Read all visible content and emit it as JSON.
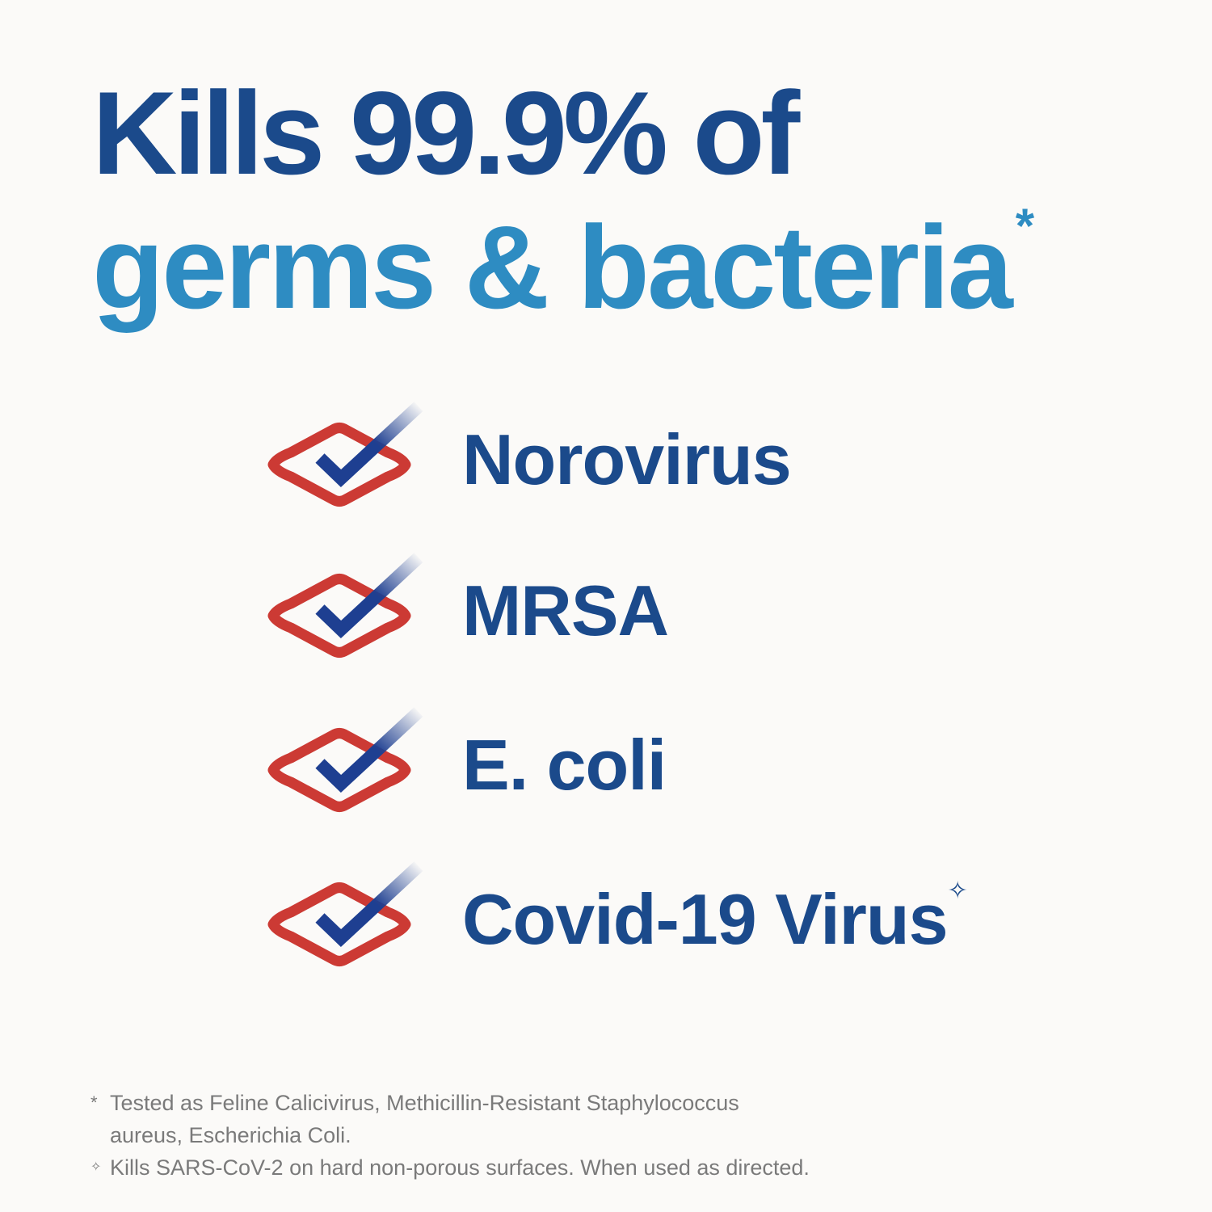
{
  "headline": {
    "line1": "Kills 99.9% of",
    "line2": "germs & bacteria",
    "asterisk": "*"
  },
  "colors": {
    "dark_blue": "#1b4a8b",
    "light_blue": "#2e8cc2",
    "check_red": "#cc3a34",
    "footnote_gray": "#7a7a7a"
  },
  "items": [
    {
      "label": "Norovirus",
      "icon": "check-badge-icon",
      "mark": ""
    },
    {
      "label": "MRSA",
      "icon": "check-badge-icon",
      "mark": ""
    },
    {
      "label": "E. coli",
      "icon": "check-badge-icon",
      "mark": ""
    },
    {
      "label": "Covid-19 Virus",
      "icon": "check-badge-icon",
      "mark": "✧"
    }
  ],
  "footnotes": [
    {
      "mark": "*",
      "text": "Tested as Feline Calicivirus, Methicillin-Resistant Staphylococcus",
      "cont": "aureus, Escherichia Coli."
    },
    {
      "mark": "✧",
      "text": "Kills SARS-CoV-2 on hard non-porous surfaces. When used as directed."
    }
  ]
}
